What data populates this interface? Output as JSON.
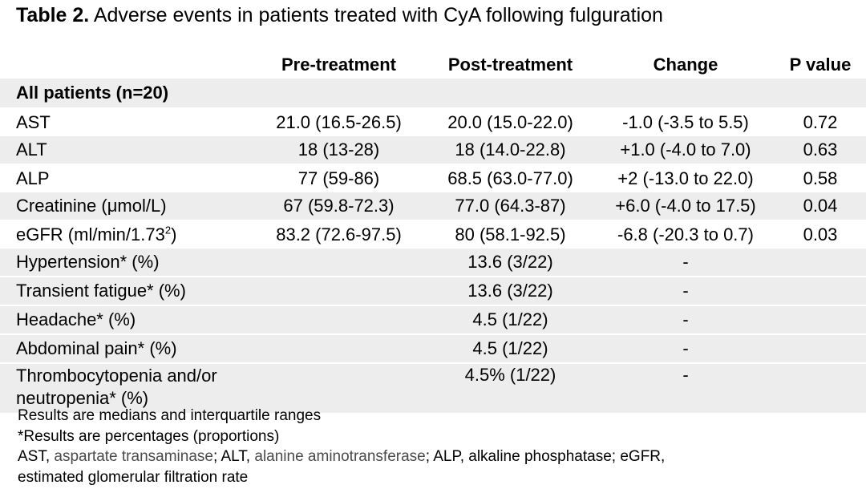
{
  "caption": {
    "label": "Table 2.",
    "text": " Adverse events in patients treated with CyA following fulguration"
  },
  "table": {
    "headers": [
      "",
      "Pre-treatment",
      "Post-treatment",
      "Change",
      "P value"
    ],
    "group_label": "All patients (n=20)",
    "lab_rows": [
      {
        "name": "AST",
        "pre": "21.0 (16.5-26.5)",
        "post": "20.0 (15.0-22.0)",
        "change": "-1.0 (-3.5 to 5.5)",
        "p": "0.72"
      },
      {
        "name": "ALT",
        "pre": "18 (13-28)",
        "post": "18 (14.0-22.8)",
        "change": "+1.0 (-4.0 to 7.0)",
        "p": "0.63"
      },
      {
        "name": "ALP",
        "pre": "77 (59-86)",
        "post": "68.5 (63.0-77.0)",
        "change": "+2 (-13.0 to 22.0)",
        "p": "0.58"
      },
      {
        "name": "Creatinine (μmol/L)",
        "pre": "67 (59.8-72.3)",
        "post": "77.0 (64.3-87)",
        "change": "+6.0 (-4.0 to 17.5)",
        "p": "0.04"
      },
      {
        "name_prefix": "eGFR (ml/min/1.73",
        "name_sup": "2",
        "name_suffix": ")",
        "pre": "83.2 (72.6-97.5)",
        "post": "80 (58.1-92.5)",
        "change": "-6.8 (-20.3 to 0.7)",
        "p": "0.03"
      }
    ],
    "event_rows": [
      {
        "name": "Hypertension* (%)",
        "post": "13.6 (3/22)",
        "change": "-"
      },
      {
        "name": "Transient fatigue* (%)",
        "post": "13.6 (3/22)",
        "change": "-"
      },
      {
        "name": "Headache* (%)",
        "post": "4.5 (1/22)",
        "change": "-"
      },
      {
        "name": "Abdominal pain* (%)",
        "post": "4.5 (1/22)",
        "change": "-"
      },
      {
        "name": "Thrombocytopenia and/or neutropenia* (%)",
        "post": "4.5% (1/22)",
        "change": "-"
      }
    ]
  },
  "notes": {
    "line1": "Results are medians and interquartile ranges",
    "line2": "*Results are percentages (proportions)",
    "line3_a": "AST, ",
    "line3_b": "aspartate transaminase",
    "line3_c": "; ALT, ",
    "line3_d": "alanine aminotransferase",
    "line3_e": "; ALP, alkaline phosphatase; eGFR,",
    "line4": "estimated glomerular filtration rate"
  }
}
